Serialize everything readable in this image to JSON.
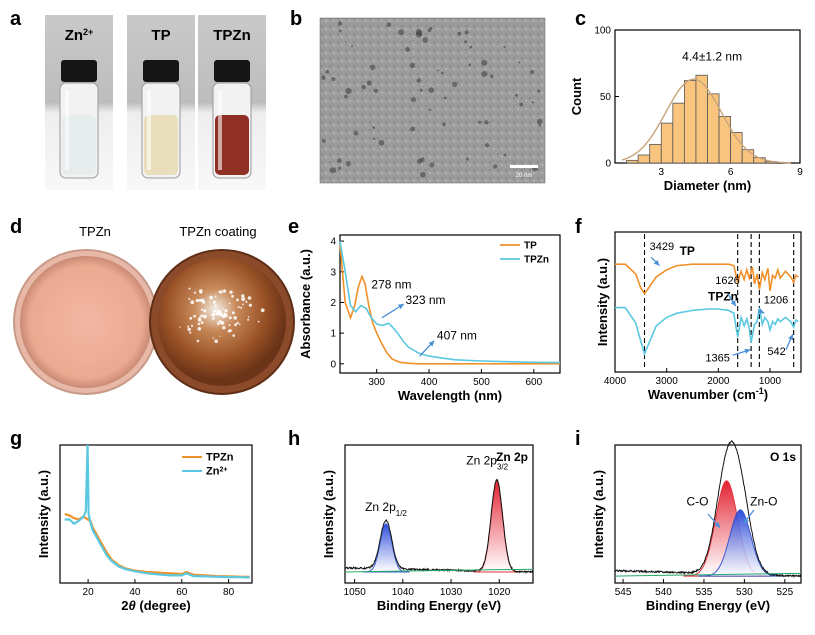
{
  "panels": {
    "a": {
      "label": "a",
      "vials": [
        {
          "name": "Zn2+",
          "base": "Zn",
          "sup": "2+",
          "liquid": "#e6ecec"
        },
        {
          "name": "TP",
          "base": "TP",
          "sup": "",
          "liquid": "#e8ddb8"
        },
        {
          "name": "TPZn",
          "base": "TPZn",
          "sup": "",
          "liquid": "#8a2418"
        }
      ]
    },
    "b": {
      "label": "b",
      "scale_bar": "20 nm"
    },
    "c": {
      "label": "c"
    },
    "d": {
      "label": "d",
      "left_title": "TPZn",
      "right_title": "TPZn coating"
    },
    "e": {
      "label": "e"
    },
    "f": {
      "label": "f"
    },
    "g": {
      "label": "g"
    },
    "h": {
      "label": "h"
    },
    "i": {
      "label": "i"
    }
  },
  "chart_data": [
    {
      "id": "c",
      "type": "bar",
      "xlabel": "Diameter (nm)",
      "ylabel": "Count",
      "xlim": [
        1,
        9
      ],
      "ylim": [
        0,
        100
      ],
      "xticks": [
        3,
        6,
        9
      ],
      "yticks": [
        0,
        50,
        100
      ],
      "annotation": "4.4±1.2 nm",
      "bin_edges": [
        1.5,
        2.0,
        2.5,
        3.0,
        3.5,
        4.0,
        4.5,
        5.0,
        5.5,
        6.0,
        6.5,
        7.0,
        7.5,
        8.0
      ],
      "values": [
        2,
        6,
        14,
        30,
        45,
        62,
        66,
        52,
        35,
        23,
        10,
        4,
        1
      ],
      "fit": {
        "type": "gaussian",
        "mean": 4.4,
        "sd": 1.2,
        "peak": 63
      },
      "colors": {
        "bar": "#f9c47e",
        "edge": "#555555",
        "fit": "#c8a47a"
      }
    },
    {
      "id": "e",
      "type": "line",
      "xlabel": "Wavelength (nm)",
      "ylabel": "Absorbance (a.u.)",
      "xlim": [
        230,
        650
      ],
      "ylim": [
        -0.3,
        4.2
      ],
      "xticks": [
        300,
        400,
        500,
        600
      ],
      "yticks": [
        0,
        1,
        2,
        3,
        4
      ],
      "series": [
        {
          "name": "TP",
          "color": "#f0902a",
          "x": [
            230,
            240,
            250,
            258,
            265,
            272,
            278,
            285,
            292,
            300,
            310,
            320,
            330,
            345,
            360,
            380,
            420,
            500,
            600,
            650
          ],
          "y": [
            3.9,
            2.0,
            1.5,
            1.9,
            2.5,
            2.85,
            2.6,
            1.9,
            1.35,
            1.0,
            0.65,
            0.35,
            0.15,
            0.05,
            0.02,
            0.0,
            0.0,
            0.0,
            0.0,
            0.0
          ]
        },
        {
          "name": "TPZn",
          "color": "#5ac8e0",
          "x": [
            230,
            240,
            250,
            260,
            270,
            280,
            290,
            300,
            310,
            320,
            323,
            330,
            340,
            350,
            360,
            370,
            380,
            400,
            420,
            450,
            500,
            550,
            600,
            650
          ],
          "y": [
            4.0,
            3.0,
            1.9,
            1.7,
            1.9,
            1.8,
            1.5,
            1.3,
            1.25,
            1.3,
            1.32,
            1.2,
            1.0,
            0.75,
            0.55,
            0.45,
            0.35,
            0.25,
            0.2,
            0.13,
            0.09,
            0.07,
            0.05,
            0.04
          ]
        }
      ],
      "annotations": [
        "278 nm",
        "323 nm",
        "407 nm"
      ]
    },
    {
      "id": "f",
      "type": "line",
      "xlabel": "Wavenumber (cm-1)",
      "xlabel_base": "Wavenumber (cm",
      "xlabel_sup": "-1",
      "xlabel_end": ")",
      "ylabel": "Intensity (a.u.)",
      "xlim": [
        4000,
        400
      ],
      "ylim": [
        0,
        10
      ],
      "xticks": [
        4000,
        3000,
        2000,
        1000
      ],
      "yticks": [],
      "series": [
        {
          "name": "TP",
          "color": "#f0902a",
          "x": [
            4000,
            3800,
            3600,
            3500,
            3429,
            3350,
            3200,
            3000,
            2800,
            2500,
            2200,
            2000,
            1800,
            1700,
            1626,
            1560,
            1500,
            1450,
            1400,
            1340,
            1300,
            1250,
            1206,
            1150,
            1100,
            1040,
            1000,
            950,
            900,
            850,
            800,
            700,
            600,
            542,
            500,
            450
          ],
          "y": [
            7.7,
            7.7,
            7.0,
            6.0,
            5.6,
            6.0,
            6.8,
            7.3,
            7.6,
            7.7,
            7.7,
            7.7,
            7.7,
            7.6,
            6.4,
            7.2,
            6.6,
            7.3,
            6.7,
            7.5,
            6.3,
            7.0,
            5.9,
            7.1,
            6.6,
            7.4,
            5.8,
            6.9,
            6.7,
            7.3,
            6.7,
            7.2,
            6.8,
            6.4,
            6.9,
            6.8
          ]
        },
        {
          "name": "TPZn",
          "color": "#5ac8e0",
          "x": [
            4000,
            3800,
            3600,
            3500,
            3429,
            3350,
            3200,
            3000,
            2800,
            2500,
            2200,
            2000,
            1800,
            1700,
            1626,
            1560,
            1500,
            1450,
            1400,
            1365,
            1300,
            1250,
            1206,
            1150,
            1100,
            1040,
            1000,
            950,
            900,
            850,
            800,
            700,
            600,
            542,
            500,
            450
          ],
          "y": [
            4.6,
            4.6,
            3.5,
            2.2,
            1.3,
            2.0,
            3.3,
            3.9,
            4.2,
            4.4,
            4.5,
            4.5,
            4.4,
            4.2,
            2.5,
            3.9,
            3.3,
            3.8,
            3.1,
            2.1,
            3.4,
            3.6,
            4.6,
            3.4,
            3.9,
            3.6,
            3.0,
            3.6,
            3.4,
            3.8,
            3.6,
            3.9,
            3.6,
            3.2,
            3.7,
            3.6
          ]
        }
      ],
      "series_labels": [
        "TP",
        "TPZn"
      ],
      "annotations": [
        "3429",
        "1626",
        "1206",
        "1365",
        "542"
      ],
      "dashed_lines_at": [
        3429,
        1626,
        1365,
        1206,
        542
      ]
    },
    {
      "id": "g",
      "type": "line",
      "xlabel": "2θ (degree)",
      "xlabel_theta_prefix": "2",
      "xlabel_theta": "θ",
      "xlabel_rest": " (degree)",
      "ylabel": "Intensity (a.u.)",
      "xlim": [
        8,
        90
      ],
      "ylim": [
        0,
        10
      ],
      "xticks": [
        20,
        40,
        60,
        80
      ],
      "yticks": [],
      "series": [
        {
          "name": "TPZn",
          "color": "#f0902a",
          "x": [
            10,
            12,
            14,
            16,
            18,
            19,
            20,
            21,
            22,
            24,
            26,
            28,
            30,
            33,
            36,
            40,
            45,
            50,
            55,
            60,
            62,
            65,
            70,
            75,
            80,
            85,
            89
          ],
          "y": [
            5.0,
            4.9,
            4.7,
            4.6,
            4.8,
            4.7,
            4.6,
            4.5,
            4.0,
            3.4,
            2.8,
            2.2,
            1.7,
            1.3,
            1.05,
            0.9,
            0.8,
            0.75,
            0.7,
            0.65,
            0.8,
            0.6,
            0.55,
            0.5,
            0.48,
            0.46,
            0.45
          ]
        },
        {
          "name": "Zn2+",
          "label_base": "Zn",
          "label_sup": "2+",
          "color": "#5ac8e0",
          "x": [
            10,
            12,
            14,
            16,
            18,
            19,
            19.8,
            20.2,
            21,
            22,
            24,
            26,
            28,
            30,
            33,
            36,
            40,
            45,
            50,
            55,
            60,
            62,
            65,
            70,
            75,
            80,
            85,
            89
          ],
          "y": [
            4.6,
            4.6,
            4.3,
            4.5,
            4.8,
            5.2,
            10.0,
            5.0,
            4.4,
            3.8,
            3.2,
            2.6,
            2.0,
            1.6,
            1.2,
            1.0,
            0.85,
            0.7,
            0.62,
            0.55,
            0.55,
            0.7,
            0.5,
            0.48,
            0.45,
            0.43,
            0.42,
            0.4
          ]
        }
      ]
    },
    {
      "id": "h",
      "type": "area",
      "title": "Zn 2p",
      "xlabel": "Binding Energy (eV)",
      "ylabel": "Intensity (a.u.)",
      "xlim": [
        1052,
        1013
      ],
      "ylim": [
        0,
        10
      ],
      "xticks": [
        1050,
        1040,
        1030,
        1020
      ],
      "yticks": [],
      "baseline": 0.8,
      "peaks": [
        {
          "label_base": "Zn 2p",
          "label_sub": "1/2",
          "center": 1043.5,
          "height": 3.5,
          "width": 1.2,
          "color": "#2a4fd0"
        },
        {
          "label_base": "Zn 2p",
          "label_sub": "3/2",
          "center": 1020.5,
          "height": 6.6,
          "width": 1.2,
          "color": "#e0202a"
        }
      ]
    },
    {
      "id": "i",
      "type": "area",
      "title": "O 1s",
      "xlabel": "Binding Energy (eV)",
      "ylabel": "Intensity (a.u.)",
      "xlim": [
        546,
        523
      ],
      "ylim": [
        0,
        10
      ],
      "xticks": [
        545,
        540,
        535,
        530,
        525
      ],
      "yticks": [],
      "baseline": 0.5,
      "peaks": [
        {
          "label": "C-O",
          "center": 532.2,
          "height": 6.9,
          "width": 1.35,
          "color": "#e0202a"
        },
        {
          "label": "Zn-O",
          "center": 530.5,
          "height": 4.8,
          "width": 1.3,
          "color": "#2a4fd0"
        }
      ]
    }
  ]
}
